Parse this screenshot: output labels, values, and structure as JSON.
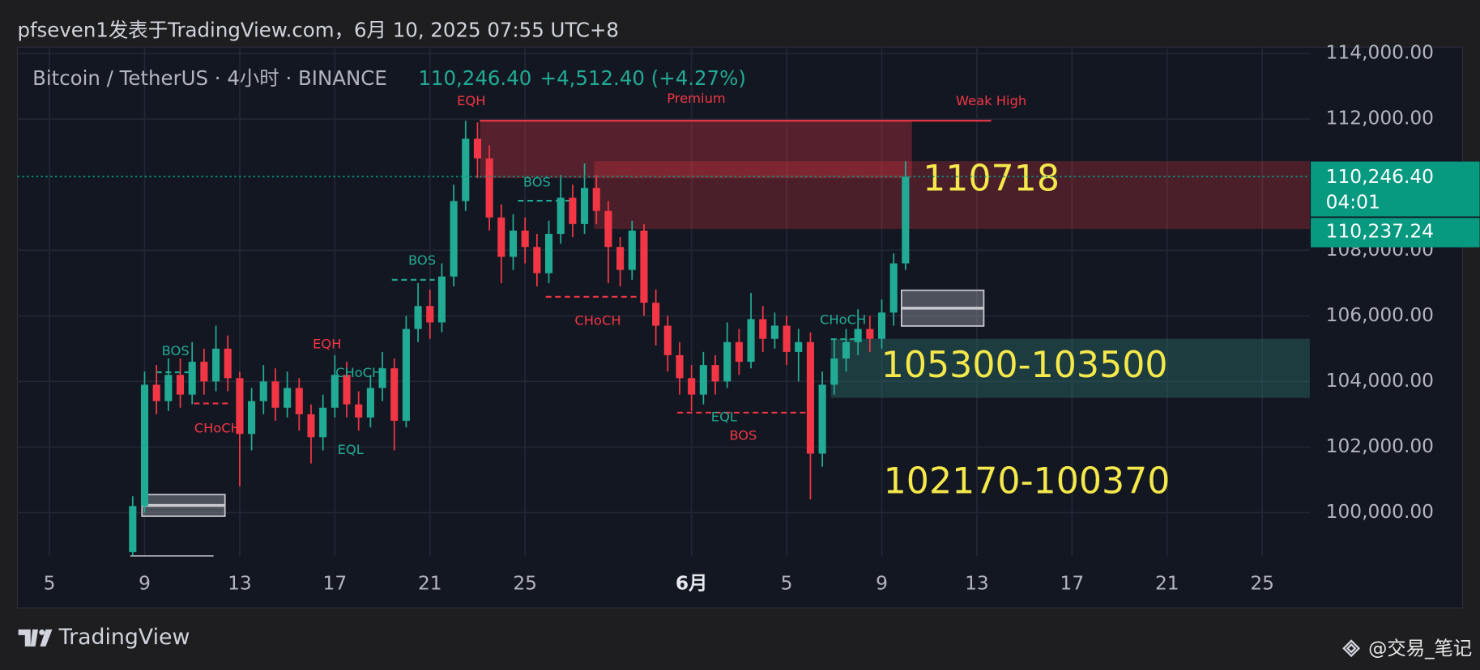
{
  "header": {
    "title": "pfseven1发表于TradingView.com，6月 10, 2025 07:55 UTC+8"
  },
  "footer": {
    "brand": "TradingView",
    "watermark": "@交易_笔记"
  },
  "chart_data": {
    "type": "candlestick",
    "symbol": "Bitcoin / TetherUS · 4小时 · BINANCE",
    "legend_price": "110,246.40",
    "legend_change": "+4,512.40 (+4.27%)",
    "up_color": "#22ab94",
    "down_color": "#f23645",
    "grid": true,
    "xlim": [
      3.65,
      58.0
    ],
    "ylim": [
      98678,
      114195
    ],
    "xticks": [
      5,
      9,
      13,
      17,
      21,
      25,
      {
        "value": 32,
        "label": "6月"
      },
      {
        "value": 36,
        "label": "5"
      },
      {
        "value": 40,
        "label": "9"
      },
      {
        "value": 44,
        "label": "13"
      },
      {
        "value": 48,
        "label": "17"
      },
      {
        "value": 52,
        "label": "21"
      },
      {
        "value": 56,
        "label": "25"
      }
    ],
    "yticks": [
      {
        "value": 100000,
        "label": "100,000.00"
      },
      {
        "value": 102000,
        "label": "102,000.00"
      },
      {
        "value": 104000,
        "label": "104,000.00"
      },
      {
        "value": 106000,
        "label": "106,000.00"
      },
      {
        "value": 108000,
        "label": "108,000.00"
      },
      {
        "value": 112000,
        "label": "112,000.00"
      },
      {
        "value": 114000,
        "label": "114,000.00"
      }
    ],
    "x": [
      8.5,
      9,
      9.5,
      10,
      10.5,
      11,
      11.5,
      12,
      12.5,
      13,
      13.5,
      14,
      14.5,
      15,
      15.5,
      16,
      16.5,
      17,
      17.5,
      18,
      18.5,
      19,
      19.5,
      20,
      20.5,
      21,
      21.5,
      22,
      22.5,
      23,
      23.5,
      24,
      24.5,
      25,
      25.5,
      26,
      26.5,
      27,
      27.5,
      28,
      28.5,
      29,
      29.5,
      30,
      30.5,
      31,
      31.5,
      32,
      32.5,
      33,
      33.5,
      34,
      34.5,
      35,
      35.5,
      36,
      36.5,
      37,
      37.5,
      38,
      38.5,
      39,
      39.5,
      40,
      40.5,
      41
    ],
    "open": [
      98800,
      100200,
      103900,
      103400,
      104200,
      103600,
      104600,
      104000,
      105000,
      104100,
      102400,
      103400,
      104000,
      103200,
      103800,
      103000,
      102300,
      103200,
      104200,
      103300,
      102900,
      103800,
      104400,
      102800,
      105600,
      106300,
      105800,
      107200,
      109500,
      111400,
      110800,
      109000,
      107800,
      108600,
      108100,
      107300,
      108500,
      109600,
      108800,
      109900,
      109200,
      108100,
      107400,
      108600,
      106400,
      105700,
      104800,
      104100,
      103600,
      104500,
      104000,
      105200,
      104600,
      105900,
      105300,
      105700,
      104900,
      105200,
      101800,
      103900,
      104700,
      105200,
      105600,
      105300,
      106100,
      107600
    ],
    "high": [
      100500,
      104300,
      104500,
      104700,
      104700,
      105200,
      105000,
      105700,
      105400,
      104300,
      103800,
      104500,
      104400,
      104300,
      104100,
      103300,
      103600,
      104800,
      104600,
      103700,
      104200,
      104900,
      104700,
      106000,
      107000,
      106800,
      107600,
      110000,
      111950,
      111900,
      111200,
      109400,
      109100,
      109000,
      108500,
      108900,
      110300,
      110000,
      110650,
      110300,
      109500,
      108400,
      108900,
      108800,
      106800,
      106000,
      105200,
      104500,
      104900,
      104800,
      105800,
      105600,
      106700,
      106300,
      106100,
      106000,
      105600,
      105500,
      104300,
      105300,
      105600,
      106200,
      106000,
      106500,
      107900,
      110718
    ],
    "low": [
      98700,
      100000,
      103000,
      103100,
      103200,
      103300,
      103600,
      103700,
      103700,
      100800,
      101900,
      103000,
      102800,
      102900,
      102500,
      101500,
      101900,
      102900,
      102900,
      102500,
      102600,
      103400,
      101900,
      102600,
      105200,
      105300,
      105500,
      106900,
      109200,
      110200,
      108600,
      107000,
      107400,
      107600,
      106900,
      107000,
      108200,
      108400,
      108500,
      108800,
      107000,
      106900,
      107100,
      106000,
      105100,
      104300,
      103600,
      103100,
      103300,
      103600,
      103800,
      104200,
      104400,
      104900,
      105000,
      104500,
      104000,
      100400,
      101400,
      103600,
      104300,
      104800,
      104900,
      105000,
      105700,
      107400
    ],
    "close": [
      100200,
      103900,
      103400,
      104200,
      103600,
      104600,
      104000,
      105000,
      104100,
      102400,
      103400,
      104000,
      103200,
      103800,
      103000,
      102300,
      103200,
      104200,
      103300,
      102900,
      103800,
      104400,
      102800,
      105600,
      106300,
      105800,
      107200,
      109500,
      111400,
      110800,
      109000,
      107800,
      108600,
      108100,
      107300,
      108500,
      109600,
      108800,
      109900,
      109200,
      108100,
      107400,
      108600,
      106400,
      105700,
      104800,
      104100,
      103600,
      104500,
      104000,
      105200,
      104600,
      105900,
      105300,
      105700,
      104900,
      105200,
      101800,
      103900,
      104700,
      105200,
      105600,
      105300,
      106100,
      107600,
      110246.4
    ],
    "last_price": {
      "value": 110246.4,
      "label": "110,246.40"
    },
    "countdown": "04:01",
    "other_price": {
      "value": 110237.24,
      "label": "110,237.24"
    },
    "price_box_color": "#089981",
    "zones": [
      {
        "x": [
          23.1,
          41.27
        ],
        "y": [
          111950,
          110200
        ],
        "color": "#f23645",
        "opacity": 0.3
      },
      {
        "x": [
          27.9,
          58.0
        ],
        "y": [
          110718,
          108650
        ],
        "color": "#f23645",
        "opacity": 0.25
      },
      {
        "x": [
          37.86,
          58.0
        ],
        "y": [
          105300,
          103500
        ],
        "color": "#2a6b66",
        "opacity": 0.45
      },
      {
        "x": [
          40.83,
          44.29
        ],
        "y": [
          106780,
          105690
        ],
        "color": "#9598a1",
        "opacity": 0.45,
        "stroke": "#c8cad0"
      },
      {
        "x": [
          8.89,
          12.38
        ],
        "y": [
          100550,
          99890
        ],
        "color": "#9598a1",
        "opacity": 0.45,
        "stroke": "#c8cad0"
      }
    ],
    "levels": [
      {
        "x": [
          23.1,
          44.6
        ],
        "y": 111950,
        "color": "#f23645",
        "dashed": false
      },
      {
        "x": [
          8.4,
          11.9
        ],
        "y": 98680,
        "color": "#9598a1",
        "dashed": false
      },
      {
        "x": [
          9.48,
          11.07
        ],
        "y": 104280,
        "color": "#22ab94",
        "dashed": true
      },
      {
        "x": [
          11.07,
          12.66
        ],
        "y": 103330,
        "color": "#f23645",
        "dashed": true
      },
      {
        "x": [
          19.4,
          21.2
        ],
        "y": 107100,
        "color": "#22ab94",
        "dashed": true
      },
      {
        "x": [
          24.7,
          27.1
        ],
        "y": 109510,
        "color": "#22ab94",
        "dashed": true
      },
      {
        "x": [
          25.87,
          29.9
        ],
        "y": 106580,
        "color": "#f23645",
        "dashed": true
      },
      {
        "x": [
          31.4,
          36.86
        ],
        "y": 103050,
        "color": "#f23645",
        "dashed": true
      },
      {
        "x": [
          37.86,
          39.1
        ],
        "y": 105290,
        "color": "#22ab94",
        "dashed": true
      }
    ],
    "labels": [
      {
        "text": "EQH",
        "x": 22.74,
        "y": 112530,
        "color": "#f23645"
      },
      {
        "text": "Premium",
        "x": 32.2,
        "y": 112610,
        "color": "#f23645"
      },
      {
        "text": "Weak High",
        "x": 44.6,
        "y": 112530,
        "color": "#f23645"
      },
      {
        "text": "BOS",
        "x": 10.3,
        "y": 104915,
        "color": "#22ab94"
      },
      {
        "text": "CHoCH",
        "x": 12.06,
        "y": 102560,
        "color": "#f23645"
      },
      {
        "text": "EQH",
        "x": 16.67,
        "y": 105115,
        "color": "#f23645"
      },
      {
        "text": "CHoCH",
        "x": 18.0,
        "y": 104250,
        "color": "#22ab94"
      },
      {
        "text": "EQL",
        "x": 17.66,
        "y": 101900,
        "color": "#22ab94"
      },
      {
        "text": "BOS",
        "x": 20.67,
        "y": 107670,
        "color": "#22ab94"
      },
      {
        "text": "BOS",
        "x": 25.5,
        "y": 110060,
        "color": "#22ab94"
      },
      {
        "text": "CHoCH",
        "x": 28.06,
        "y": 105830,
        "color": "#f23645"
      },
      {
        "text": "EQL",
        "x": 33.37,
        "y": 102900,
        "color": "#22ab94"
      },
      {
        "text": "BOS",
        "x": 34.17,
        "y": 102330,
        "color": "#f23645"
      },
      {
        "text": "CHoCH",
        "x": 38.37,
        "y": 105860,
        "color": "#22ab94"
      }
    ],
    "targets": [
      {
        "text": "110718",
        "x": 44.6,
        "y": 110115,
        "color": "#f5e84a"
      },
      {
        "text": "105300-103500",
        "x": 46.0,
        "y": 104425,
        "color": "#f5e84a"
      },
      {
        "text": "102170-100370",
        "x": 46.1,
        "y": 100890,
        "color": "#f5e84a"
      }
    ]
  }
}
